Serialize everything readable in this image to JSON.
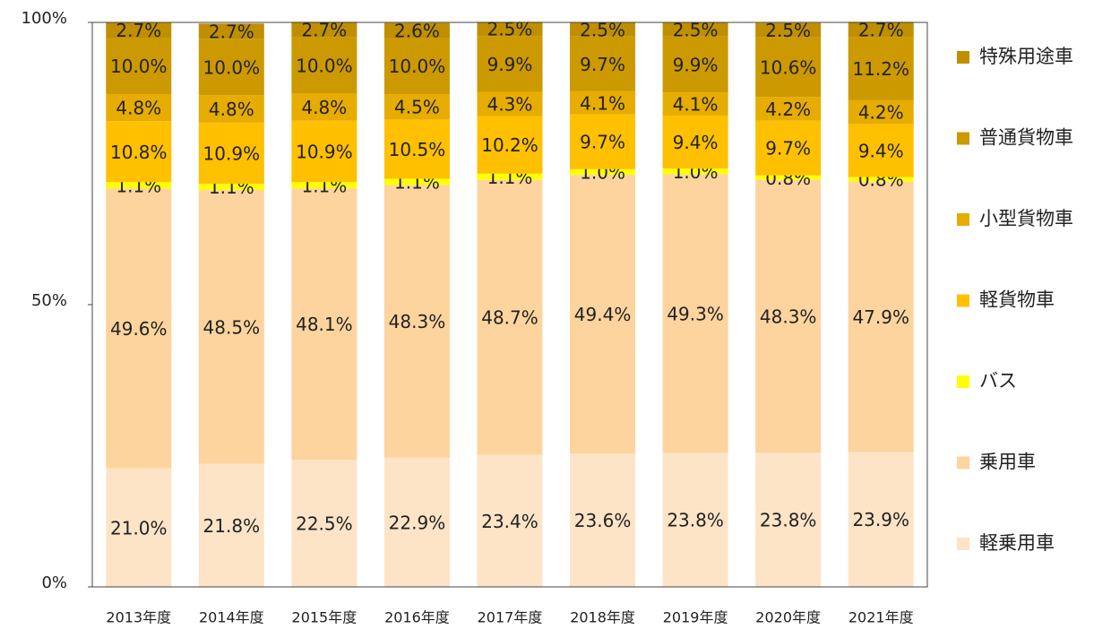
{
  "chart_data": {
    "type": "stacked_bar",
    "categories": [
      "2013年度",
      "2014年度",
      "2015年度",
      "2016年度",
      "2017年度",
      "2018年度",
      "2019年度",
      "2020年度",
      "2021年度"
    ],
    "series": [
      {
        "name": "軽乗用車",
        "color": "#fde4c6",
        "values": [
          21.0,
          21.8,
          22.5,
          22.9,
          23.4,
          23.6,
          23.8,
          23.8,
          23.9
        ],
        "value_labels": [
          "21.0%",
          "21.8%",
          "22.5%",
          "22.9%",
          "23.4%",
          "23.6%",
          "23.8%",
          "23.8%",
          "23.9%"
        ]
      },
      {
        "name": "乗用車",
        "color": "#fdd49e",
        "values": [
          49.6,
          48.5,
          48.1,
          48.3,
          48.7,
          49.4,
          49.3,
          48.3,
          47.9
        ],
        "value_labels": [
          "49.6%",
          "48.5%",
          "48.1%",
          "48.3%",
          "48.7%",
          "49.4%",
          "49.3%",
          "48.3%",
          "47.9%"
        ]
      },
      {
        "name": "バス",
        "color": "#ffff00",
        "values": [
          1.1,
          1.1,
          1.1,
          1.1,
          1.1,
          1.0,
          1.0,
          0.8,
          0.8
        ],
        "value_labels": [
          "1.1%",
          "1.1%",
          "1.1%",
          "1.1%",
          "1.1%",
          "1.0%",
          "1.0%",
          "0.8%",
          "0.8%"
        ]
      },
      {
        "name": "軽貨物車",
        "color": "#ffc000",
        "values": [
          10.8,
          10.9,
          10.9,
          10.5,
          10.2,
          9.7,
          9.4,
          9.7,
          9.4
        ],
        "value_labels": [
          "10.8%",
          "10.9%",
          "10.9%",
          "10.5%",
          "10.2%",
          "9.7%",
          "9.4%",
          "9.7%",
          "9.4%"
        ]
      },
      {
        "name": "小型貨物車",
        "color": "#e6ac00",
        "values": [
          4.8,
          4.8,
          4.8,
          4.5,
          4.3,
          4.1,
          4.1,
          4.2,
          4.2
        ],
        "value_labels": [
          "4.8%",
          "4.8%",
          "4.8%",
          "4.5%",
          "4.3%",
          "4.1%",
          "4.1%",
          "4.2%",
          "4.2%"
        ]
      },
      {
        "name": "普通貨物車",
        "color": "#cc9900",
        "values": [
          10.0,
          10.0,
          10.0,
          10.0,
          9.9,
          9.7,
          9.9,
          10.6,
          11.2
        ],
        "value_labels": [
          "10.0%",
          "10.0%",
          "10.0%",
          "10.0%",
          "9.9%",
          "9.7%",
          "9.9%",
          "10.6%",
          "11.2%"
        ]
      },
      {
        "name": "特殊用途車",
        "color": "#bf8f00",
        "values": [
          2.7,
          2.7,
          2.7,
          2.6,
          2.5,
          2.5,
          2.5,
          2.5,
          2.7
        ],
        "value_labels": [
          "2.7%",
          "2.7%",
          "2.7%",
          "2.6%",
          "2.5%",
          "2.5%",
          "2.5%",
          "2.5%",
          "2.7%"
        ]
      }
    ],
    "ylim": [
      0,
      100
    ],
    "yticks": [
      {
        "value": 0,
        "label": "0%"
      },
      {
        "value": 50,
        "label": "50%"
      },
      {
        "value": 100,
        "label": "100%"
      }
    ],
    "legend": "right"
  }
}
